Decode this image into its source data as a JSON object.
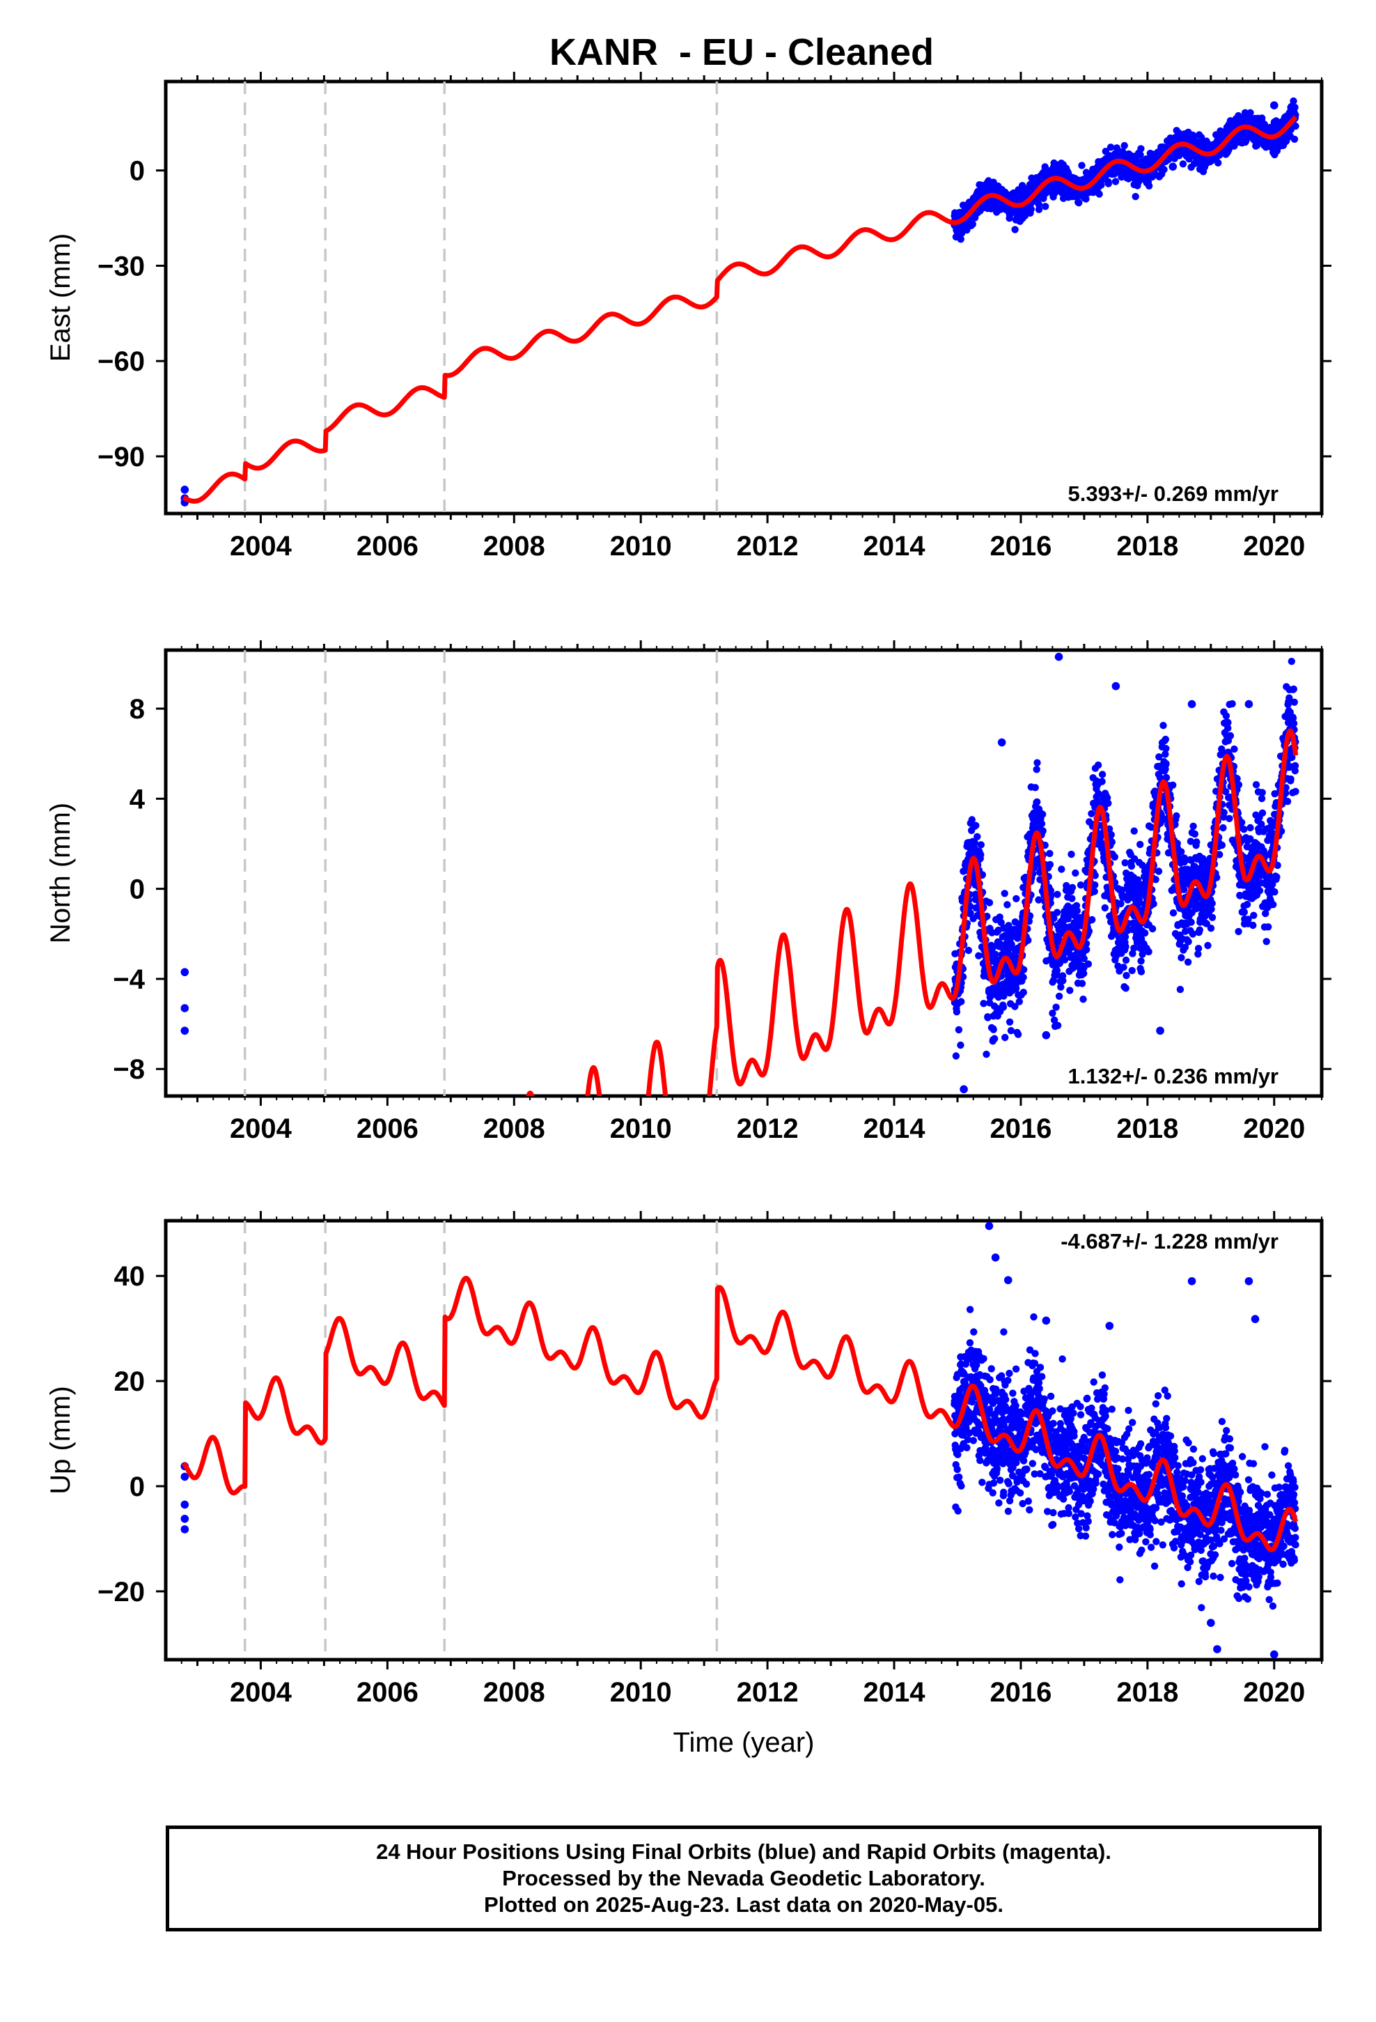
{
  "title": "KANR  - EU - Cleaned",
  "xlabel": "Time (year)",
  "colors": {
    "data": "#0000ff",
    "model": "#ff0000",
    "steps": "#c8c8c8",
    "frame": "#000000"
  },
  "footer": {
    "line1": "24 Hour Positions Using Final Orbits (blue) and Rapid Orbits (magenta).",
    "line2": "Processed by the Nevada Geodetic Laboratory.",
    "line3": "Plotted on 2025-Aug-23. Last data on 2020-May-05."
  },
  "chart_data": [
    {
      "type": "scatter",
      "ylabel": "East (mm)",
      "rate_text": "5.393+/- 0.269 mm/yr",
      "rate_position": "bottom-right",
      "xlim": [
        2002.5,
        2020.75
      ],
      "ylim": [
        -108,
        28
      ],
      "xticks": [
        "2004",
        "2006",
        "2008",
        "2010",
        "2012",
        "2014",
        "2016",
        "2018",
        "2020"
      ],
      "yticks": [
        "−90",
        "−60",
        "−30",
        "0"
      ],
      "yticks_values": [
        -90,
        -60,
        -30,
        0
      ],
      "step_epochs": [
        2003.75,
        2005.02,
        2006.9,
        2011.2
      ],
      "model": {
        "rate": 5.393,
        "ref_epoch": 2017.5,
        "ref_value": 0.0,
        "steps": [
          5.0,
          6.0,
          7.0,
          5.0
        ],
        "annual_sin": 0.0,
        "annual_cos": -2.8,
        "semi_sin": 0.0,
        "semi_cos": 0.0
      },
      "observations": [
        {
          "t": 2002.8,
          "y": -100.5
        },
        {
          "t": 2002.8,
          "y": -103.2
        },
        {
          "t": 2002.8,
          "y": -104.5
        },
        {
          "t": 2016.1,
          "y": -7.8
        },
        {
          "t": 2016.5,
          "y": -6.2
        },
        {
          "t": 2017.3,
          "y": -1.5
        },
        {
          "t": 2017.7,
          "y": 3.5
        },
        {
          "t": 2018.4,
          "y": 1.2
        },
        {
          "t": 2019.2,
          "y": 6.5
        },
        {
          "t": 2020.0,
          "y": 20.5
        },
        {
          "t": 2020.2,
          "y": 17.0
        }
      ],
      "daily_series": {
        "start": 2014.95,
        "end": 2020.34,
        "scatter_mm": 2.2
      }
    },
    {
      "type": "scatter",
      "ylabel": "North (mm)",
      "rate_text": "1.132+/- 0.236 mm/yr",
      "rate_position": "bottom-right",
      "xlim": [
        2002.5,
        2020.75
      ],
      "ylim": [
        -9.2,
        10.6
      ],
      "xticks": [
        "2004",
        "2006",
        "2008",
        "2010",
        "2012",
        "2014",
        "2016",
        "2018",
        "2020"
      ],
      "yticks": [
        "−8",
        "−4",
        "0",
        "4",
        "8"
      ],
      "yticks_values": [
        -8,
        -4,
        0,
        4,
        8
      ],
      "step_epochs": [
        2003.75,
        2005.02,
        2006.9,
        2011.2
      ],
      "model": {
        "rate": 1.132,
        "ref_epoch": 2017.5,
        "ref_value": 0.0,
        "steps": [
          3.5,
          3.0,
          2.5,
          2.5
        ],
        "annual_sin": 2.5,
        "annual_cos": 0.0,
        "semi_sin": 0.0,
        "semi_cos": -1.4
      },
      "observations": [
        {
          "t": 2002.8,
          "y": -3.7
        },
        {
          "t": 2002.8,
          "y": -5.3
        },
        {
          "t": 2002.8,
          "y": -6.3
        },
        {
          "t": 2015.7,
          "y": 6.5
        },
        {
          "t": 2016.6,
          "y": 10.3
        },
        {
          "t": 2017.5,
          "y": 9.0
        },
        {
          "t": 2018.7,
          "y": 8.2
        },
        {
          "t": 2019.6,
          "y": 8.2
        },
        {
          "t": 2015.1,
          "y": -8.9
        },
        {
          "t": 2016.4,
          "y": -6.5
        },
        {
          "t": 2018.2,
          "y": -6.3
        },
        {
          "t": 2020.2,
          "y": 6.1
        }
      ],
      "daily_series": {
        "start": 2014.95,
        "end": 2020.34,
        "scatter_mm": 1.2
      }
    },
    {
      "type": "scatter",
      "ylabel": "Up (mm)",
      "rate_text": "-4.687+/- 1.228 mm/yr",
      "rate_position": "top-right",
      "xlim": [
        2002.5,
        2020.75
      ],
      "ylim": [
        -33,
        50.5
      ],
      "xticks": [
        "2004",
        "2006",
        "2008",
        "2010",
        "2012",
        "2014",
        "2016",
        "2018",
        "2020"
      ],
      "yticks": [
        "−20",
        "0",
        "20",
        "40"
      ],
      "yticks_values": [
        -20,
        0,
        20,
        40
      ],
      "step_epochs": [
        2003.75,
        2005.02,
        2006.9,
        2011.2
      ],
      "model": {
        "rate": -4.687,
        "ref_epoch": 2017.5,
        "ref_value": 2.5,
        "steps": [
          16.0,
          16.0,
          17.0,
          17.0
        ],
        "annual_sin": 3.5,
        "annual_cos": 0.0,
        "semi_sin": 0.0,
        "semi_cos": -2.5
      },
      "observations": [
        {
          "t": 2002.8,
          "y": 3.8
        },
        {
          "t": 2002.8,
          "y": 1.8
        },
        {
          "t": 2002.8,
          "y": -3.5
        },
        {
          "t": 2002.8,
          "y": -6.2
        },
        {
          "t": 2002.8,
          "y": -8.2
        },
        {
          "t": 2015.5,
          "y": 49.5
        },
        {
          "t": 2015.6,
          "y": 43.5
        },
        {
          "t": 2015.8,
          "y": 39.2
        },
        {
          "t": 2016.4,
          "y": 31.5
        },
        {
          "t": 2017.4,
          "y": 30.5
        },
        {
          "t": 2018.7,
          "y": 39.0
        },
        {
          "t": 2019.6,
          "y": 39.0
        },
        {
          "t": 2019.7,
          "y": 31.8
        },
        {
          "t": 2019.1,
          "y": -31.0
        },
        {
          "t": 2020.0,
          "y": -32.0
        },
        {
          "t": 2019.0,
          "y": -26.0
        }
      ],
      "daily_series": {
        "start": 2014.95,
        "end": 2020.34,
        "scatter_mm": 5.5
      }
    }
  ]
}
